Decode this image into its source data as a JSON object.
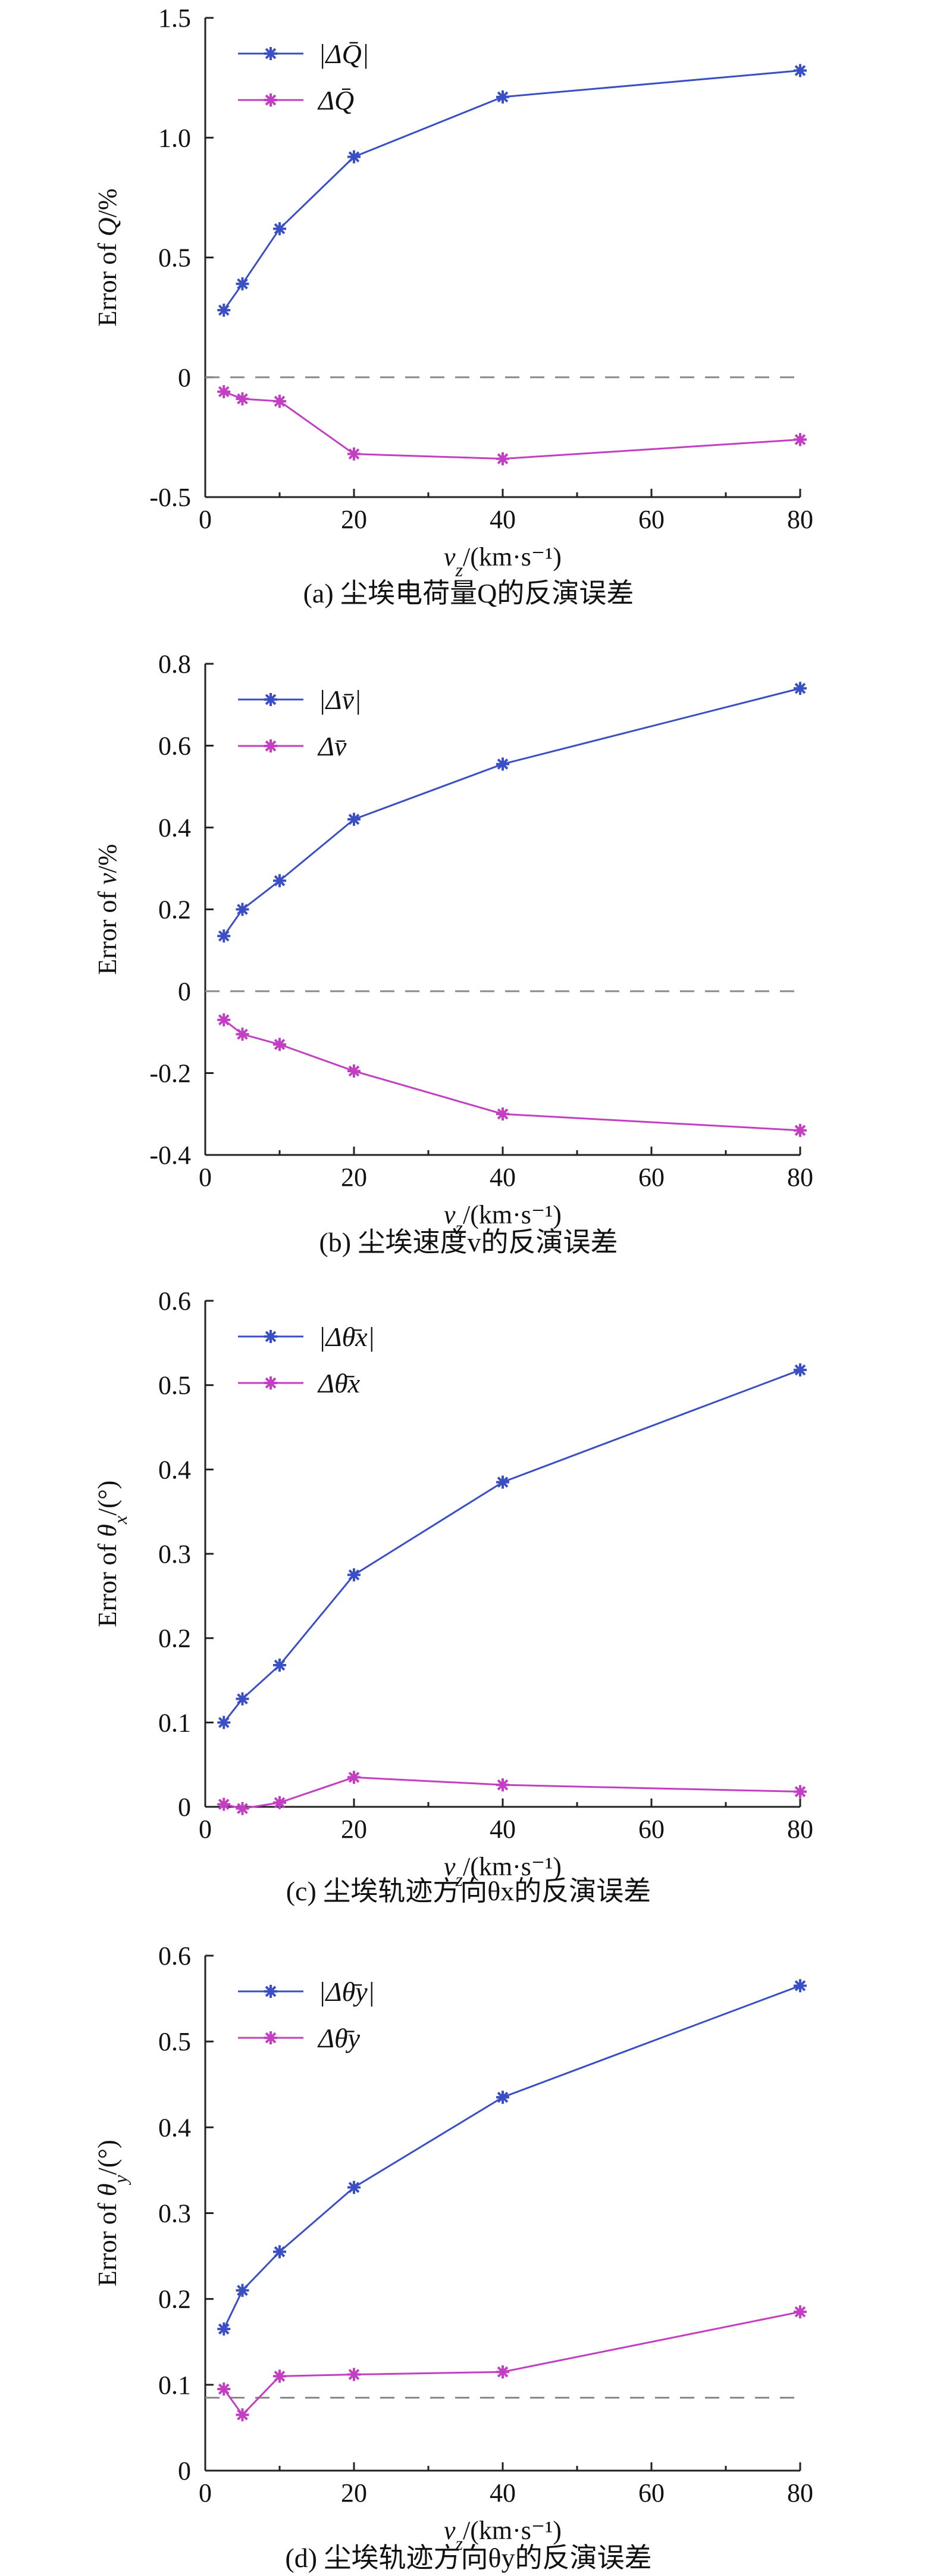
{
  "colors": {
    "series1": "#3b4fc4",
    "series2": "#c23ec2",
    "dashed": "#8a8a8a"
  },
  "chart_data": [
    {
      "type": "line",
      "panel": "a",
      "xlabel": "v_z/(km·s⁻¹)",
      "ylabel": "Error of Q/%",
      "xlim": [
        0,
        80
      ],
      "ylim": [
        -0.5,
        1.5
      ],
      "xticks": [
        0,
        20,
        40,
        60,
        80
      ],
      "yticks": [
        -0.5,
        0,
        0.5,
        1.0,
        1.5
      ],
      "ytick_labels": [
        "-0.5",
        "0",
        "0.5",
        "1.0",
        "1.5"
      ],
      "reference_line": 0,
      "legend_position": "top-left",
      "x": [
        2.5,
        5,
        10,
        20,
        40,
        80
      ],
      "series": [
        {
          "name": "|ΔQ̄|",
          "values": [
            0.28,
            0.39,
            0.62,
            0.92,
            1.17,
            1.28
          ]
        },
        {
          "name": "ΔQ̄",
          "values": [
            -0.06,
            -0.09,
            -0.1,
            -0.32,
            -0.34,
            -0.26
          ]
        }
      ],
      "caption": "(a)  尘埃电荷量Q的反演误差"
    },
    {
      "type": "line",
      "panel": "b",
      "xlabel": "v_z/(km·s⁻¹)",
      "ylabel": "Error of v/%",
      "xlim": [
        0,
        80
      ],
      "ylim": [
        -0.4,
        0.8
      ],
      "xticks": [
        0,
        20,
        40,
        60,
        80
      ],
      "yticks": [
        -0.4,
        -0.2,
        0,
        0.2,
        0.4,
        0.6,
        0.8
      ],
      "ytick_labels": [
        "-0.4",
        "-0.2",
        "0",
        "0.2",
        "0.4",
        "0.6",
        "0.8"
      ],
      "reference_line": 0,
      "legend_position": "top-left",
      "x": [
        2.5,
        5,
        10,
        20,
        40,
        80
      ],
      "series": [
        {
          "name": "|Δv̄|",
          "values": [
            0.135,
            0.2,
            0.27,
            0.42,
            0.555,
            0.74
          ]
        },
        {
          "name": "Δv̄",
          "values": [
            -0.07,
            -0.105,
            -0.13,
            -0.195,
            -0.3,
            -0.34
          ]
        }
      ],
      "caption": "(b)  尘埃速度v的反演误差"
    },
    {
      "type": "line",
      "panel": "c",
      "xlabel": "v_z/(km·s⁻¹)",
      "ylabel": "Error of θx/(°)",
      "xlim": [
        0,
        80
      ],
      "ylim": [
        0,
        0.6
      ],
      "xticks": [
        0,
        20,
        40,
        60,
        80
      ],
      "yticks": [
        0,
        0.1,
        0.2,
        0.3,
        0.4,
        0.5,
        0.6
      ],
      "ytick_labels": [
        "0",
        "0.1",
        "0.2",
        "0.3",
        "0.4",
        "0.5",
        "0.6"
      ],
      "legend_position": "top-left",
      "x": [
        2.5,
        5,
        10,
        20,
        40,
        80
      ],
      "series": [
        {
          "name": "|Δθ̄x|",
          "values": [
            0.1,
            0.128,
            0.168,
            0.275,
            0.385,
            0.518
          ]
        },
        {
          "name": "Δθ̄x",
          "values": [
            0.003,
            -0.002,
            0.005,
            0.035,
            0.026,
            0.018
          ]
        }
      ],
      "caption": "(c)  尘埃轨迹方向θx的反演误差"
    },
    {
      "type": "line",
      "panel": "d",
      "xlabel": "v_z/(km·s⁻¹)",
      "ylabel": "Error of θy/(°)",
      "xlim": [
        0,
        80
      ],
      "ylim": [
        0,
        0.6
      ],
      "xticks": [
        0,
        20,
        40,
        60,
        80
      ],
      "yticks": [
        0,
        0.1,
        0.2,
        0.3,
        0.4,
        0.5,
        0.6
      ],
      "ytick_labels": [
        "0",
        "0.1",
        "0.2",
        "0.3",
        "0.4",
        "0.5",
        "0.6"
      ],
      "reference_line": 0.085,
      "legend_position": "top-left",
      "x": [
        2.5,
        5,
        10,
        20,
        40,
        80
      ],
      "series": [
        {
          "name": "|Δθ̄y|",
          "values": [
            0.165,
            0.21,
            0.255,
            0.33,
            0.435,
            0.565
          ]
        },
        {
          "name": "Δθ̄y",
          "values": [
            0.095,
            0.065,
            0.11,
            0.112,
            0.115,
            0.185
          ]
        }
      ],
      "caption": "(d)  尘埃轨迹方向θy的反演误差"
    }
  ]
}
